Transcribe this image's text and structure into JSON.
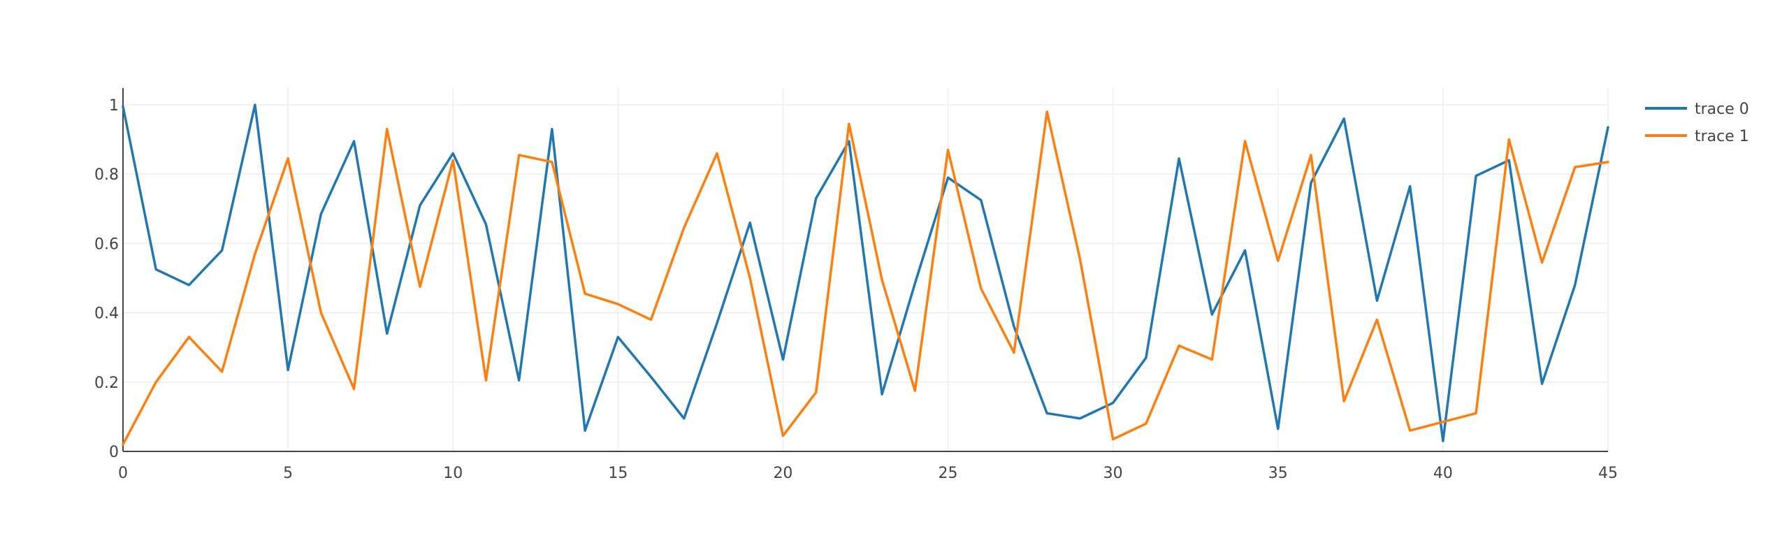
{
  "chart_data": {
    "type": "line",
    "x": [
      0,
      1,
      2,
      3,
      4,
      5,
      6,
      7,
      8,
      9,
      10,
      11,
      12,
      13,
      14,
      15,
      16,
      17,
      18,
      19,
      20,
      21,
      22,
      23,
      24,
      25,
      26,
      27,
      28,
      29,
      30,
      31,
      32,
      33,
      34,
      35,
      36,
      37,
      38,
      39,
      40,
      41,
      42,
      43,
      44,
      45
    ],
    "series": [
      {
        "name": "trace 0",
        "color": "#1f77b4",
        "values": [
          0.995,
          0.525,
          0.48,
          0.58,
          1.0,
          0.235,
          0.685,
          0.895,
          0.34,
          0.71,
          0.86,
          0.655,
          0.205,
          0.93,
          0.06,
          0.33,
          0.215,
          0.095,
          0.37,
          0.66,
          0.265,
          0.73,
          0.895,
          0.165,
          0.485,
          0.79,
          0.725,
          0.36,
          0.11,
          0.095,
          0.14,
          0.27,
          0.845,
          0.395,
          0.58,
          0.065,
          0.775,
          0.96,
          0.435,
          0.765,
          0.03,
          0.795,
          0.84,
          0.195,
          0.48,
          0.935
        ]
      },
      {
        "name": "trace 1",
        "color": "#ff7f0e",
        "values": [
          0.02,
          0.2,
          0.33,
          0.23,
          0.57,
          0.845,
          0.4,
          0.18,
          0.93,
          0.475,
          0.84,
          0.205,
          0.855,
          0.835,
          0.455,
          0.425,
          0.38,
          0.645,
          0.86,
          0.5,
          0.045,
          0.17,
          0.945,
          0.495,
          0.175,
          0.87,
          0.47,
          0.285,
          0.98,
          0.555,
          0.035,
          0.08,
          0.305,
          0.265,
          0.895,
          0.55,
          0.855,
          0.145,
          0.38,
          0.06,
          0.085,
          0.11,
          0.9,
          0.545,
          0.82,
          0.835
        ]
      }
    ],
    "x_ticks": [
      "0",
      "5",
      "10",
      "15",
      "20",
      "25",
      "30",
      "35",
      "40",
      "45"
    ],
    "x_tick_values": [
      0,
      5,
      10,
      15,
      20,
      25,
      30,
      35,
      40,
      45
    ],
    "y_ticks": [
      "0",
      "0.2",
      "0.4",
      "0.6",
      "0.8",
      "1"
    ],
    "y_tick_values": [
      0,
      0.2,
      0.4,
      0.6,
      0.8,
      1
    ],
    "xlim": [
      0,
      45
    ],
    "ylim": [
      0,
      1
    ],
    "grid": true,
    "legend_position": "top-right",
    "title": "",
    "xlabel": "",
    "ylabel": ""
  }
}
